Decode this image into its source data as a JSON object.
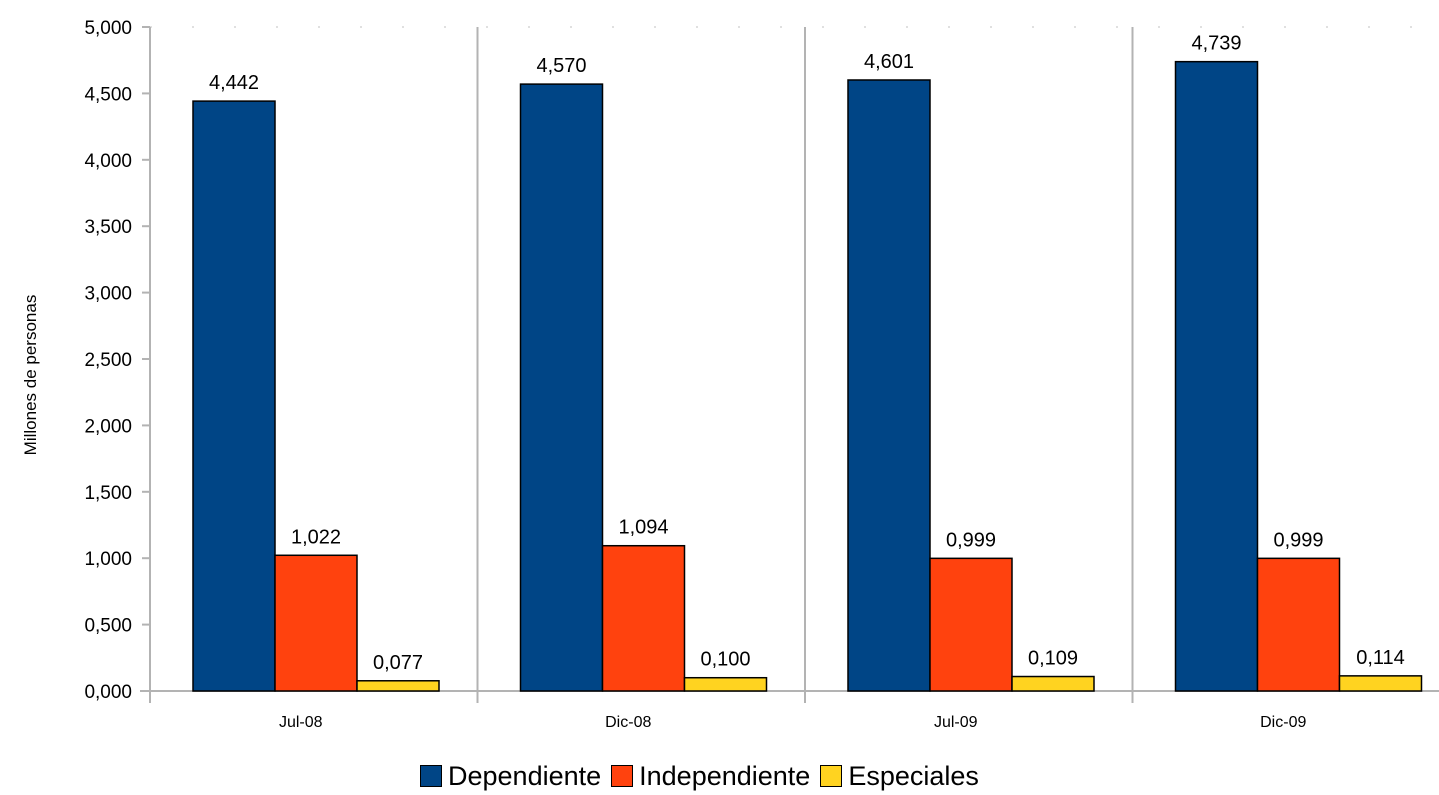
{
  "chart_data": {
    "type": "bar",
    "ylabel": "Millones de personas",
    "xlabel": "",
    "ylim": [
      0,
      5
    ],
    "yticks": [
      "0,000",
      "0,500",
      "1,000",
      "1,500",
      "2,000",
      "2,500",
      "3,000",
      "3,500",
      "4,000",
      "4,500",
      "5,000"
    ],
    "categories": [
      "Jul-08",
      "Dic-08",
      "Jul-09",
      "Dic-09"
    ],
    "series": [
      {
        "name": "Dependiente",
        "color": "#004586",
        "values": [
          4.442,
          4.57,
          4.601,
          4.739
        ],
        "labels": [
          "4,442",
          "4,570",
          "4,601",
          "4,739"
        ]
      },
      {
        "name": "Independiente",
        "color": "#ff420e",
        "values": [
          1.022,
          1.094,
          0.999,
          0.999
        ],
        "labels": [
          "1,022",
          "1,094",
          "0,999",
          "0,999"
        ]
      },
      {
        "name": "Especiales",
        "color": "#ffd320",
        "values": [
          0.077,
          0.1,
          0.109,
          0.114
        ],
        "labels": [
          "0,077",
          "0,100",
          "0,109",
          "0,114"
        ]
      }
    ],
    "grid": "vertical-separators",
    "legend_position": "bottom"
  }
}
